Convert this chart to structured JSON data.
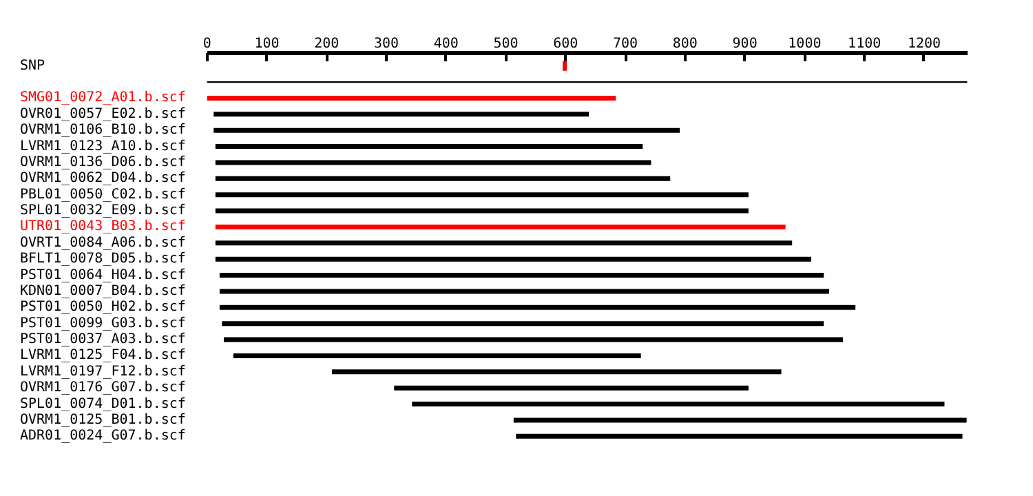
{
  "chart_data": {
    "type": "bar",
    "orientation": "horizontal",
    "grid": false,
    "categories": [
      "SNP",
      null,
      "SMG01_0072_A01.b.scf",
      "OVR01_0057_E02.b.scf",
      "OVRM1_0106_B10.b.scf",
      "LVRM1_0123_A10.b.scf",
      "OVRM1_0136_D06.b.scf",
      "OVRM1_0062_D04.b.scf",
      "PBL01_0050_C02.b.scf",
      "SPL01_0032_E09.b.scf",
      "UTR01_0043_B03.b.scf",
      "OVRT1_0084_A06.b.scf",
      "BFLT1_0078_D05.b.scf",
      "PST01_0064_H04.b.scf",
      "KDN01_0007_B04.b.scf",
      "PST01_0050_H02.b.scf",
      "PST01_0099_G03.b.scf",
      "PST01_0037_A03.b.scf",
      "LVRM1_0125_F04.b.scf",
      "LVRM1_0197_F12.b.scf",
      "OVRM1_0176_G07.b.scf",
      "SPL01_0074_D01.b.scf",
      "OVRM1_0125_B01.b.scf",
      "ADR01_0024_G07.b.scf"
    ],
    "base": [
      595,
      0,
      0,
      11,
      11,
      14,
      14,
      14,
      14,
      14,
      14,
      14,
      14,
      21,
      21,
      21,
      25,
      28,
      44,
      209,
      313,
      343,
      513,
      517
    ],
    "values": [
      7,
      1272,
      684,
      628,
      780,
      715,
      729,
      761,
      892,
      892,
      954,
      965,
      997,
      1011,
      1020,
      1064,
      1007,
      1036,
      682,
      752,
      593,
      891,
      758,
      747
    ],
    "colors": [
      "#ff0000",
      "#000000",
      "#ff0000",
      "#000000",
      "#000000",
      "#000000",
      "#000000",
      "#000000",
      "#000000",
      "#000000",
      "#ff0000",
      "#000000",
      "#000000",
      "#000000",
      "#000000",
      "#000000",
      "#000000",
      "#000000",
      "#000000",
      "#000000",
      "#000000",
      "#000000",
      "#000000",
      "#000000"
    ],
    "xlim": [
      0,
      1272
    ],
    "xticks": [
      0,
      100,
      200,
      300,
      400,
      500,
      600,
      700,
      800,
      900,
      1000,
      1100,
      1200
    ]
  }
}
